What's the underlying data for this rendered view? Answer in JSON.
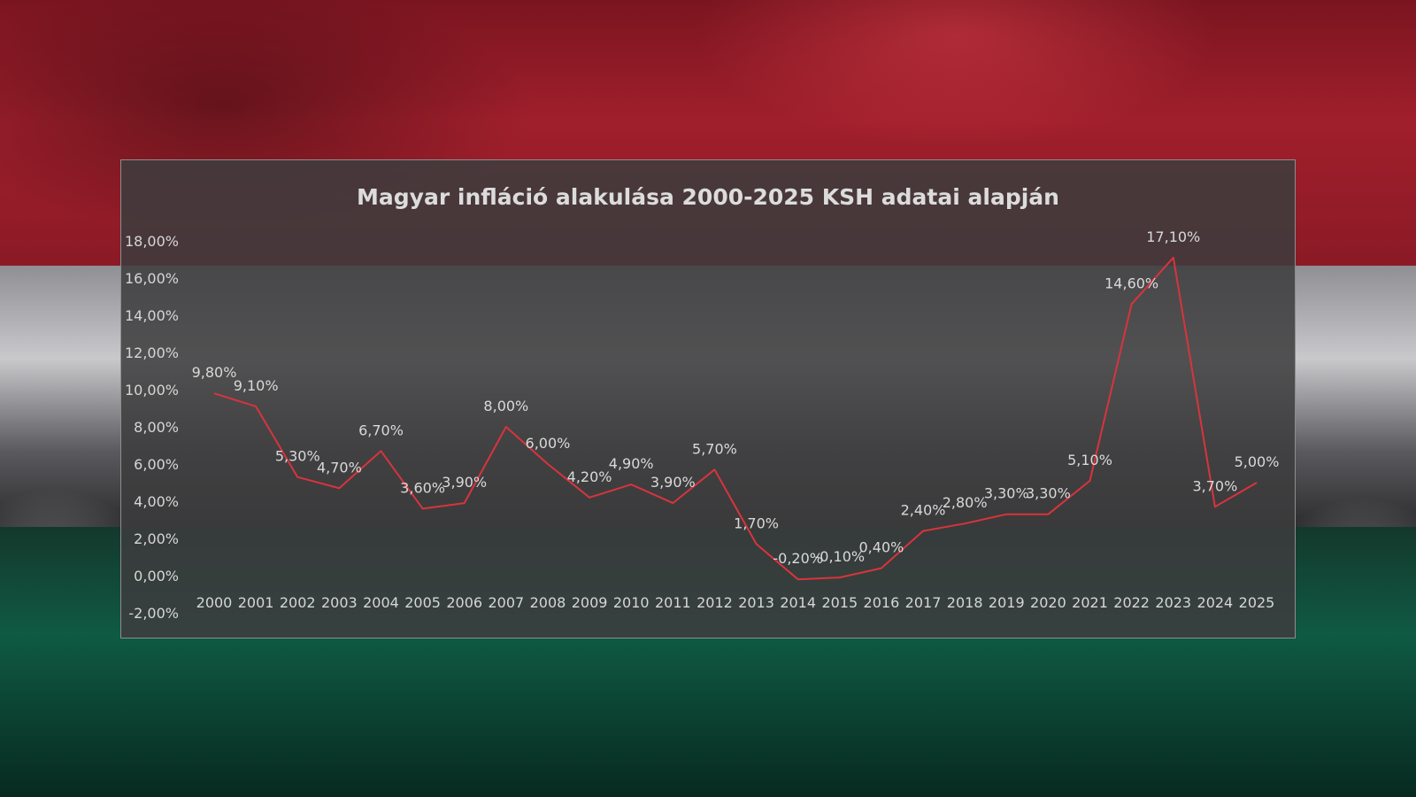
{
  "chart_data": {
    "type": "line",
    "title": "Magyar infláció alakulása 2000-2025 KSH adatai alapján",
    "xlabel": "",
    "ylabel": "",
    "categories": [
      "2000",
      "2001",
      "2002",
      "2003",
      "2004",
      "2005",
      "2006",
      "2007",
      "2008",
      "2009",
      "2010",
      "2011",
      "2012",
      "2013",
      "2014",
      "2015",
      "2016",
      "2017",
      "2018",
      "2019",
      "2020",
      "2021",
      "2022",
      "2023",
      "2024",
      "2025"
    ],
    "values": [
      9.8,
      9.1,
      5.3,
      4.7,
      6.7,
      3.6,
      3.9,
      8.0,
      6.0,
      4.2,
      4.9,
      3.9,
      5.7,
      1.7,
      -0.2,
      -0.1,
      0.4,
      2.4,
      2.8,
      3.3,
      3.3,
      5.1,
      14.6,
      17.1,
      3.7,
      5.0
    ],
    "data_labels": [
      "9,80%",
      "9,10%",
      "5,30%",
      "4,70%",
      "6,70%",
      "3,60%",
      "3,90%",
      "8,00%",
      "6,00%",
      "4,20%",
      "4,90%",
      "3,90%",
      "5,70%",
      "1,70%",
      "-0,20%",
      "-0,10%",
      "0,40%",
      "2,40%",
      "2,80%",
      "3,30%",
      "3,30%",
      "5,10%",
      "14,60%",
      "17,10%",
      "3,70%",
      "5,00%"
    ],
    "y_ticks": [
      -2,
      0,
      2,
      4,
      6,
      8,
      10,
      12,
      14,
      16,
      18
    ],
    "y_tick_labels": [
      "-2,00%",
      "0,00%",
      "2,00%",
      "4,00%",
      "6,00%",
      "8,00%",
      "10,00%",
      "12,00%",
      "14,00%",
      "16,00%",
      "18,00%"
    ],
    "ylim": [
      -2,
      18
    ],
    "grid": false,
    "legend": "none",
    "line_color": "#d8343c",
    "text_color": "#d9d9d9",
    "panel_color": "#3c3c3e"
  }
}
